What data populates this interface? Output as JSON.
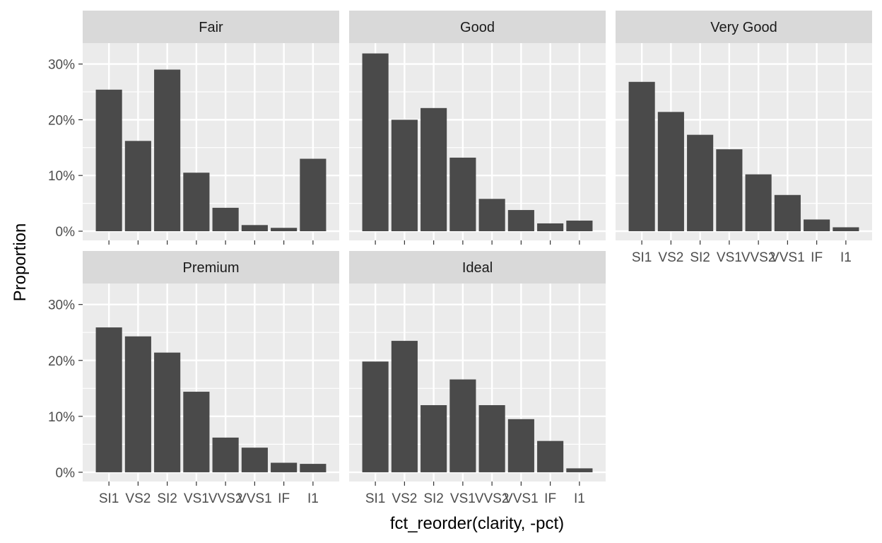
{
  "chart_data": {
    "type": "bar",
    "xlabel": "fct_reorder(clarity, -pct)",
    "ylabel": "Proportion",
    "categories": [
      "SI1",
      "VS2",
      "SI2",
      "VS1",
      "VVS2",
      "VVS1",
      "IF",
      "I1"
    ],
    "y_ticks": [
      0,
      0.1,
      0.2,
      0.3
    ],
    "y_tick_labels": [
      "0%",
      "10%",
      "20%",
      "30%"
    ],
    "ylim": [
      0,
      0.33
    ],
    "grid": true,
    "panels": [
      {
        "name": "Fair",
        "values": [
          0.254,
          0.162,
          0.29,
          0.105,
          0.042,
          0.011,
          0.006,
          0.13
        ]
      },
      {
        "name": "Good",
        "values": [
          0.319,
          0.2,
          0.221,
          0.132,
          0.058,
          0.038,
          0.014,
          0.019
        ]
      },
      {
        "name": "Very Good",
        "values": [
          0.268,
          0.214,
          0.173,
          0.147,
          0.102,
          0.065,
          0.021,
          0.007
        ]
      },
      {
        "name": "Premium",
        "values": [
          0.259,
          0.243,
          0.214,
          0.144,
          0.062,
          0.044,
          0.017,
          0.015
        ]
      },
      {
        "name": "Ideal",
        "values": [
          0.198,
          0.235,
          0.12,
          0.166,
          0.12,
          0.095,
          0.056,
          0.007
        ]
      }
    ]
  },
  "colors": {
    "panel_bg": "#ebebeb",
    "strip_bg": "#d9d9d9",
    "bar": "#4a4a4a",
    "grid": "#ffffff",
    "tick": "#333333"
  }
}
